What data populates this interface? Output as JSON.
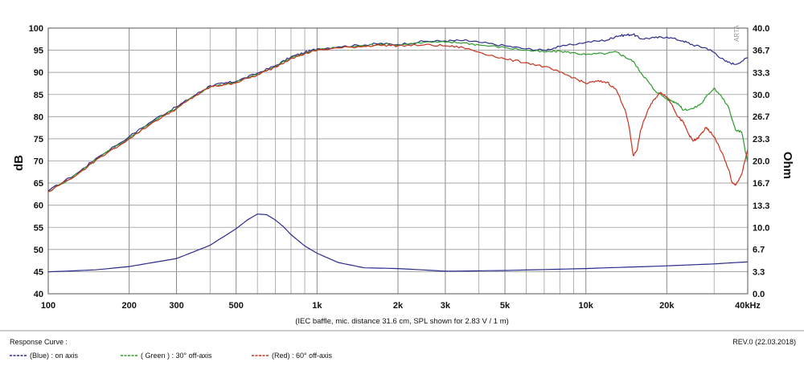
{
  "chart_data": {
    "type": "line",
    "x_scale": "log",
    "x_tick_labels": [
      "100",
      "200",
      "300",
      "500",
      "1k",
      "2k",
      "3k",
      "5k",
      "10k",
      "20k",
      "40kHz"
    ],
    "x_tick_values": [
      100,
      200,
      300,
      500,
      1000,
      2000,
      3000,
      5000,
      10000,
      20000,
      40000
    ],
    "xlim": [
      100,
      40000
    ],
    "ylabel": "dB",
    "ylim": [
      40,
      100
    ],
    "y_tick_labels": [
      "100",
      "95",
      "90",
      "85",
      "80",
      "75",
      "70",
      "65",
      "60",
      "55",
      "50",
      "45",
      "40"
    ],
    "y_tick_values": [
      100,
      95,
      90,
      85,
      80,
      75,
      70,
      65,
      60,
      55,
      50,
      45,
      40
    ],
    "y2label": "Ohm",
    "y2lim": [
      0,
      40
    ],
    "y2_tick_labels": [
      "40.0",
      "36.7",
      "33.3",
      "30.0",
      "26.7",
      "23.3",
      "20.0",
      "16.7",
      "13.3",
      "10.0",
      "6.7",
      "3.3",
      "0.0"
    ],
    "y2_tick_values": [
      40.0,
      36.7,
      33.3,
      30.0,
      26.7,
      23.3,
      20.0,
      16.7,
      13.3,
      10.0,
      6.7,
      3.3,
      0.0
    ],
    "grid": true,
    "xlabel": "(IEC baffle, mic. distance 31.6 cm, SPL shown for 2.83 V / 1 m)",
    "watermark": "ARTA",
    "legend": {
      "title": "Response Curve :",
      "entries": [
        "(Blue)  : on axis",
        "( Green ) : 30° off-axis",
        "(Red) : 60° off-axis"
      ]
    },
    "revision": "REV.0 (22.03.2018)",
    "series": [
      {
        "name": "on axis",
        "axis": "left",
        "color": "#2b2b8c",
        "x": [
          100,
          130,
          150,
          200,
          250,
          300,
          350,
          400,
          450,
          500,
          600,
          700,
          800,
          900,
          1000,
          1200,
          1500,
          1700,
          2000,
          2500,
          3000,
          3500,
          4000,
          5000,
          6000,
          7000,
          8000,
          10000,
          12000,
          13000,
          14000,
          15000,
          16000,
          18000,
          20000,
          23000,
          25000,
          28000,
          30000,
          33000,
          36000,
          40000
        ],
        "values": [
          63.2,
          67.5,
          70.5,
          75.5,
          79.5,
          82.2,
          84.8,
          87,
          87.5,
          88,
          89.8,
          91.5,
          93.5,
          94.5,
          95.3,
          95.8,
          96.2,
          96.5,
          96.3,
          97,
          97.1,
          97.2,
          96.8,
          96,
          95.3,
          95,
          95.8,
          96.8,
          97.3,
          98.2,
          98.4,
          98.6,
          97.6,
          97.8,
          98,
          97.1,
          96.2,
          95.5,
          94.5,
          92.5,
          91.8,
          93.3
        ]
      },
      {
        "name": "30° off-axis",
        "axis": "left",
        "color": "#2f9a2f",
        "x": [
          100,
          130,
          150,
          200,
          250,
          300,
          350,
          400,
          450,
          500,
          600,
          700,
          800,
          900,
          1000,
          1200,
          1500,
          1700,
          2000,
          2500,
          3000,
          3500,
          4000,
          5000,
          6000,
          7000,
          8000,
          9000,
          10000,
          12000,
          13000,
          14000,
          15000,
          16000,
          17000,
          18000,
          20000,
          21000,
          22000,
          23000,
          25000,
          27000,
          28000,
          30000,
          32000,
          34000,
          36000,
          38000,
          40000
        ],
        "values": [
          63,
          67.3,
          70.3,
          75.2,
          79.2,
          82,
          84.6,
          86.8,
          87.3,
          87.8,
          89.5,
          91.3,
          93.3,
          94.3,
          95.1,
          95.6,
          96,
          96.4,
          96.2,
          96.8,
          96.8,
          96.7,
          96.2,
          95.6,
          95,
          94.6,
          94.8,
          94.4,
          94,
          94.3,
          94.6,
          93.5,
          92.5,
          90,
          88,
          86,
          84,
          83.5,
          83,
          81.5,
          81.8,
          83,
          84.5,
          86.5,
          84.5,
          82,
          77,
          76.5,
          69.5
        ]
      },
      {
        "name": "60° off-axis",
        "axis": "left",
        "color": "#c8321e",
        "x": [
          100,
          130,
          150,
          200,
          250,
          300,
          350,
          400,
          450,
          500,
          600,
          700,
          800,
          900,
          1000,
          1200,
          1500,
          1700,
          2000,
          2500,
          3000,
          3500,
          4000,
          5000,
          6000,
          7000,
          8000,
          9000,
          10000,
          11000,
          12000,
          13000,
          14000,
          14500,
          15000,
          15500,
          16000,
          17000,
          18000,
          19000,
          20000,
          21000,
          22000,
          23000,
          24000,
          25000,
          26000,
          27000,
          28000,
          29000,
          30000,
          32000,
          34000,
          35000,
          36000,
          38000,
          40000
        ],
        "values": [
          63,
          67.2,
          70.1,
          75,
          79,
          81.8,
          84.6,
          86.7,
          87.2,
          87.7,
          89.4,
          91.2,
          93.2,
          94.2,
          95,
          95.5,
          95.9,
          96.2,
          96,
          96.2,
          96,
          95.6,
          94.6,
          93,
          92.2,
          91.3,
          90,
          88.8,
          87.5,
          88,
          87.8,
          86,
          81.5,
          77.5,
          71.2,
          72.5,
          77,
          81.5,
          84,
          85.5,
          84.5,
          82.5,
          80,
          78.8,
          76.3,
          74.5,
          75,
          76.3,
          77.5,
          76.5,
          75.5,
          72,
          68,
          65,
          64.5,
          67,
          72.5
        ]
      },
      {
        "name": "impedance",
        "axis": "right",
        "color": "#2b2b8c",
        "x": [
          100,
          150,
          200,
          300,
          400,
          500,
          550,
          600,
          650,
          700,
          750,
          800,
          900,
          1000,
          1200,
          1500,
          2000,
          3000,
          5000,
          10000,
          20000,
          30000,
          40000
        ],
        "values": [
          3.3,
          3.6,
          4.1,
          5.3,
          7.3,
          9.8,
          11.1,
          12,
          11.9,
          11.1,
          10.1,
          8.9,
          7.2,
          6.1,
          4.7,
          3.9,
          3.8,
          3.4,
          3.5,
          3.8,
          4.2,
          4.5,
          4.8
        ]
      }
    ]
  }
}
